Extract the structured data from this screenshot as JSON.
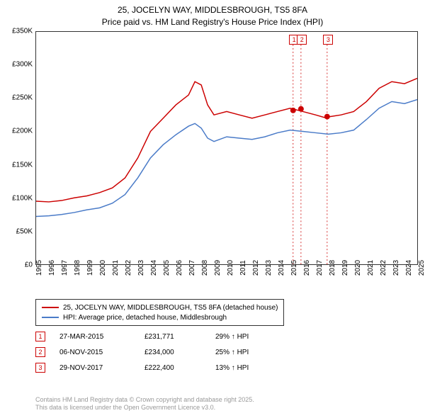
{
  "title_line1": "25, JOCELYN WAY, MIDDLESBROUGH, TS5 8FA",
  "title_line2": "Price paid vs. HM Land Registry's House Price Index (HPI)",
  "chart": {
    "background_color": "#ffffff",
    "border_color": "#333333",
    "ylim": [
      0,
      350000
    ],
    "ytick_step": 50000,
    "ytick_labels": [
      "£0",
      "£50K",
      "£100K",
      "£150K",
      "£200K",
      "£250K",
      "£300K",
      "£350K"
    ],
    "xlim": [
      1995,
      2025
    ],
    "xtick_step": 1,
    "xtick_labels": [
      "1995",
      "1996",
      "1997",
      "1998",
      "1999",
      "2000",
      "2001",
      "2002",
      "2003",
      "2004",
      "2005",
      "2006",
      "2007",
      "2008",
      "2009",
      "2010",
      "2011",
      "2012",
      "2013",
      "2014",
      "2015",
      "2016",
      "2017",
      "2018",
      "2019",
      "2020",
      "2021",
      "2022",
      "2023",
      "2024",
      "2025"
    ],
    "series": [
      {
        "name": "25, JOCELYN WAY, MIDDLESBROUGH, TS5 8FA (detached house)",
        "color": "#cc0000",
        "line_width": 1.5,
        "points": [
          [
            1995,
            95000
          ],
          [
            1996,
            94000
          ],
          [
            1997,
            96000
          ],
          [
            1998,
            100000
          ],
          [
            1999,
            103000
          ],
          [
            2000,
            108000
          ],
          [
            2001,
            115000
          ],
          [
            2002,
            130000
          ],
          [
            2003,
            160000
          ],
          [
            2004,
            200000
          ],
          [
            2005,
            220000
          ],
          [
            2006,
            240000
          ],
          [
            2007,
            255000
          ],
          [
            2007.5,
            275000
          ],
          [
            2008,
            270000
          ],
          [
            2008.5,
            240000
          ],
          [
            2009,
            225000
          ],
          [
            2010,
            230000
          ],
          [
            2011,
            225000
          ],
          [
            2012,
            220000
          ],
          [
            2013,
            225000
          ],
          [
            2014,
            230000
          ],
          [
            2015,
            235000
          ],
          [
            2016,
            230000
          ],
          [
            2017,
            225000
          ],
          [
            2017.9,
            220000
          ],
          [
            2018,
            222000
          ],
          [
            2019,
            225000
          ],
          [
            2020,
            230000
          ],
          [
            2021,
            245000
          ],
          [
            2022,
            265000
          ],
          [
            2023,
            275000
          ],
          [
            2024,
            272000
          ],
          [
            2025,
            280000
          ]
        ]
      },
      {
        "name": "HPI: Average price, detached house, Middlesbrough",
        "color": "#4a7bc8",
        "line_width": 1.5,
        "points": [
          [
            1995,
            72000
          ],
          [
            1996,
            73000
          ],
          [
            1997,
            75000
          ],
          [
            1998,
            78000
          ],
          [
            1999,
            82000
          ],
          [
            2000,
            85000
          ],
          [
            2001,
            92000
          ],
          [
            2002,
            105000
          ],
          [
            2003,
            130000
          ],
          [
            2004,
            160000
          ],
          [
            2005,
            180000
          ],
          [
            2006,
            195000
          ],
          [
            2007,
            208000
          ],
          [
            2007.5,
            212000
          ],
          [
            2008,
            205000
          ],
          [
            2008.5,
            190000
          ],
          [
            2009,
            185000
          ],
          [
            2010,
            192000
          ],
          [
            2011,
            190000
          ],
          [
            2012,
            188000
          ],
          [
            2013,
            192000
          ],
          [
            2014,
            198000
          ],
          [
            2015,
            202000
          ],
          [
            2016,
            200000
          ],
          [
            2017,
            198000
          ],
          [
            2018,
            196000
          ],
          [
            2019,
            198000
          ],
          [
            2020,
            202000
          ],
          [
            2021,
            218000
          ],
          [
            2022,
            235000
          ],
          [
            2023,
            245000
          ],
          [
            2024,
            242000
          ],
          [
            2025,
            248000
          ]
        ]
      }
    ],
    "sale_markers": [
      {
        "n": "1",
        "year": 2015.23,
        "price": 231771,
        "date": "27-MAR-2015",
        "delta": "29% ↑ HPI"
      },
      {
        "n": "2",
        "year": 2015.85,
        "price": 234000,
        "date": "06-NOV-2015",
        "delta": "25% ↑ HPI"
      },
      {
        "n": "3",
        "year": 2017.91,
        "price": 222400,
        "date": "29-NOV-2017",
        "delta": "13% ↑ HPI"
      }
    ],
    "marker_dot_color": "#cc0000",
    "marker_dot_radius": 4,
    "marker_guideline_color": "#cc0000",
    "marker_guideline_dash": "2,3",
    "flag_top_offset": 18
  },
  "legend": {
    "border_color": "#333333"
  },
  "price_labels": [
    "£231,771",
    "£234,000",
    "£222,400"
  ],
  "attribution_line1": "Contains HM Land Registry data © Crown copyright and database right 2025.",
  "attribution_line2": "This data is licensed under the Open Government Licence v3.0."
}
